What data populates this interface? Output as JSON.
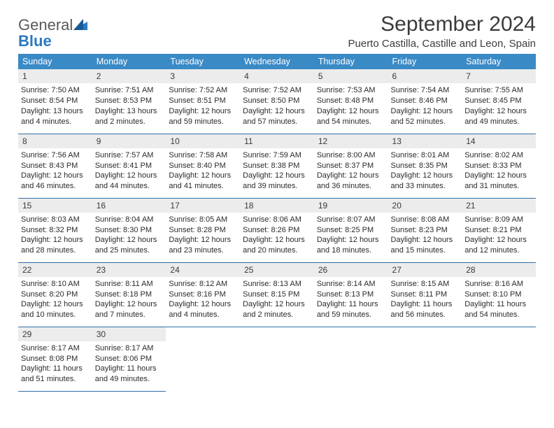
{
  "brand": {
    "part1": "General",
    "part2": "Blue"
  },
  "title": "September 2024",
  "location": "Puerto Castilla, Castille and Leon, Spain",
  "colors": {
    "header_bg": "#3a8ac6",
    "header_text": "#ffffff",
    "daynum_bg": "#ececec",
    "cell_border": "#2f6fa8",
    "logo_gray": "#5a5a5a",
    "logo_blue": "#2a7ac0"
  },
  "day_headers": [
    "Sunday",
    "Monday",
    "Tuesday",
    "Wednesday",
    "Thursday",
    "Friday",
    "Saturday"
  ],
  "weeks": [
    [
      {
        "n": "1",
        "sr": "Sunrise: 7:50 AM",
        "ss": "Sunset: 8:54 PM",
        "dl1": "Daylight: 13 hours",
        "dl2": "and 4 minutes."
      },
      {
        "n": "2",
        "sr": "Sunrise: 7:51 AM",
        "ss": "Sunset: 8:53 PM",
        "dl1": "Daylight: 13 hours",
        "dl2": "and 2 minutes."
      },
      {
        "n": "3",
        "sr": "Sunrise: 7:52 AM",
        "ss": "Sunset: 8:51 PM",
        "dl1": "Daylight: 12 hours",
        "dl2": "and 59 minutes."
      },
      {
        "n": "4",
        "sr": "Sunrise: 7:52 AM",
        "ss": "Sunset: 8:50 PM",
        "dl1": "Daylight: 12 hours",
        "dl2": "and 57 minutes."
      },
      {
        "n": "5",
        "sr": "Sunrise: 7:53 AM",
        "ss": "Sunset: 8:48 PM",
        "dl1": "Daylight: 12 hours",
        "dl2": "and 54 minutes."
      },
      {
        "n": "6",
        "sr": "Sunrise: 7:54 AM",
        "ss": "Sunset: 8:46 PM",
        "dl1": "Daylight: 12 hours",
        "dl2": "and 52 minutes."
      },
      {
        "n": "7",
        "sr": "Sunrise: 7:55 AM",
        "ss": "Sunset: 8:45 PM",
        "dl1": "Daylight: 12 hours",
        "dl2": "and 49 minutes."
      }
    ],
    [
      {
        "n": "8",
        "sr": "Sunrise: 7:56 AM",
        "ss": "Sunset: 8:43 PM",
        "dl1": "Daylight: 12 hours",
        "dl2": "and 46 minutes."
      },
      {
        "n": "9",
        "sr": "Sunrise: 7:57 AM",
        "ss": "Sunset: 8:41 PM",
        "dl1": "Daylight: 12 hours",
        "dl2": "and 44 minutes."
      },
      {
        "n": "10",
        "sr": "Sunrise: 7:58 AM",
        "ss": "Sunset: 8:40 PM",
        "dl1": "Daylight: 12 hours",
        "dl2": "and 41 minutes."
      },
      {
        "n": "11",
        "sr": "Sunrise: 7:59 AM",
        "ss": "Sunset: 8:38 PM",
        "dl1": "Daylight: 12 hours",
        "dl2": "and 39 minutes."
      },
      {
        "n": "12",
        "sr": "Sunrise: 8:00 AM",
        "ss": "Sunset: 8:37 PM",
        "dl1": "Daylight: 12 hours",
        "dl2": "and 36 minutes."
      },
      {
        "n": "13",
        "sr": "Sunrise: 8:01 AM",
        "ss": "Sunset: 8:35 PM",
        "dl1": "Daylight: 12 hours",
        "dl2": "and 33 minutes."
      },
      {
        "n": "14",
        "sr": "Sunrise: 8:02 AM",
        "ss": "Sunset: 8:33 PM",
        "dl1": "Daylight: 12 hours",
        "dl2": "and 31 minutes."
      }
    ],
    [
      {
        "n": "15",
        "sr": "Sunrise: 8:03 AM",
        "ss": "Sunset: 8:32 PM",
        "dl1": "Daylight: 12 hours",
        "dl2": "and 28 minutes."
      },
      {
        "n": "16",
        "sr": "Sunrise: 8:04 AM",
        "ss": "Sunset: 8:30 PM",
        "dl1": "Daylight: 12 hours",
        "dl2": "and 25 minutes."
      },
      {
        "n": "17",
        "sr": "Sunrise: 8:05 AM",
        "ss": "Sunset: 8:28 PM",
        "dl1": "Daylight: 12 hours",
        "dl2": "and 23 minutes."
      },
      {
        "n": "18",
        "sr": "Sunrise: 8:06 AM",
        "ss": "Sunset: 8:26 PM",
        "dl1": "Daylight: 12 hours",
        "dl2": "and 20 minutes."
      },
      {
        "n": "19",
        "sr": "Sunrise: 8:07 AM",
        "ss": "Sunset: 8:25 PM",
        "dl1": "Daylight: 12 hours",
        "dl2": "and 18 minutes."
      },
      {
        "n": "20",
        "sr": "Sunrise: 8:08 AM",
        "ss": "Sunset: 8:23 PM",
        "dl1": "Daylight: 12 hours",
        "dl2": "and 15 minutes."
      },
      {
        "n": "21",
        "sr": "Sunrise: 8:09 AM",
        "ss": "Sunset: 8:21 PM",
        "dl1": "Daylight: 12 hours",
        "dl2": "and 12 minutes."
      }
    ],
    [
      {
        "n": "22",
        "sr": "Sunrise: 8:10 AM",
        "ss": "Sunset: 8:20 PM",
        "dl1": "Daylight: 12 hours",
        "dl2": "and 10 minutes."
      },
      {
        "n": "23",
        "sr": "Sunrise: 8:11 AM",
        "ss": "Sunset: 8:18 PM",
        "dl1": "Daylight: 12 hours",
        "dl2": "and 7 minutes."
      },
      {
        "n": "24",
        "sr": "Sunrise: 8:12 AM",
        "ss": "Sunset: 8:16 PM",
        "dl1": "Daylight: 12 hours",
        "dl2": "and 4 minutes."
      },
      {
        "n": "25",
        "sr": "Sunrise: 8:13 AM",
        "ss": "Sunset: 8:15 PM",
        "dl1": "Daylight: 12 hours",
        "dl2": "and 2 minutes."
      },
      {
        "n": "26",
        "sr": "Sunrise: 8:14 AM",
        "ss": "Sunset: 8:13 PM",
        "dl1": "Daylight: 11 hours",
        "dl2": "and 59 minutes."
      },
      {
        "n": "27",
        "sr": "Sunrise: 8:15 AM",
        "ss": "Sunset: 8:11 PM",
        "dl1": "Daylight: 11 hours",
        "dl2": "and 56 minutes."
      },
      {
        "n": "28",
        "sr": "Sunrise: 8:16 AM",
        "ss": "Sunset: 8:10 PM",
        "dl1": "Daylight: 11 hours",
        "dl2": "and 54 minutes."
      }
    ],
    [
      {
        "n": "29",
        "sr": "Sunrise: 8:17 AM",
        "ss": "Sunset: 8:08 PM",
        "dl1": "Daylight: 11 hours",
        "dl2": "and 51 minutes."
      },
      {
        "n": "30",
        "sr": "Sunrise: 8:17 AM",
        "ss": "Sunset: 8:06 PM",
        "dl1": "Daylight: 11 hours",
        "dl2": "and 49 minutes."
      },
      null,
      null,
      null,
      null,
      null
    ]
  ]
}
